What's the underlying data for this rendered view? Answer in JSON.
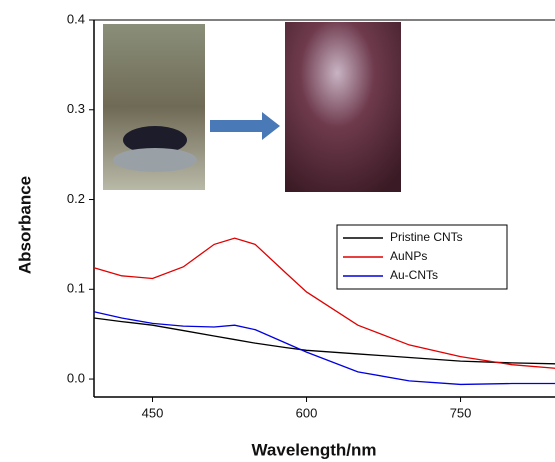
{
  "chart_data": {
    "type": "line",
    "x_label": "Wavelength/nm",
    "y_label": "Absorbance",
    "x": [
      393,
      420,
      450,
      480,
      510,
      530,
      550,
      580,
      600,
      650,
      700,
      750,
      800,
      842
    ],
    "series": [
      {
        "name": "Pristine CNTs",
        "color": "#000000",
        "values": [
          0.068,
          0.064,
          0.06,
          0.054,
          0.048,
          0.044,
          0.04,
          0.035,
          0.032,
          0.028,
          0.024,
          0.02,
          0.018,
          0.017
        ]
      },
      {
        "name": "AuNPs",
        "color": "#e00000",
        "values": [
          0.124,
          0.115,
          0.112,
          0.125,
          0.15,
          0.157,
          0.15,
          0.118,
          0.097,
          0.06,
          0.038,
          0.025,
          0.016,
          0.012
        ]
      },
      {
        "name": "Au-CNTs",
        "color": "#0000e0",
        "values": [
          0.075,
          0.068,
          0.062,
          0.059,
          0.058,
          0.06,
          0.055,
          0.04,
          0.03,
          0.008,
          -0.002,
          -0.006,
          -0.005,
          -0.005
        ]
      }
    ],
    "xlim": [
      393,
      842
    ],
    "ylim": [
      -0.02,
      0.4
    ],
    "xticks": [
      450,
      600,
      750
    ],
    "yticks": [
      {
        "value": 0,
        "label": "0.0"
      },
      0.1,
      0.2,
      0.3,
      0.4
    ],
    "legend": "right"
  }
}
